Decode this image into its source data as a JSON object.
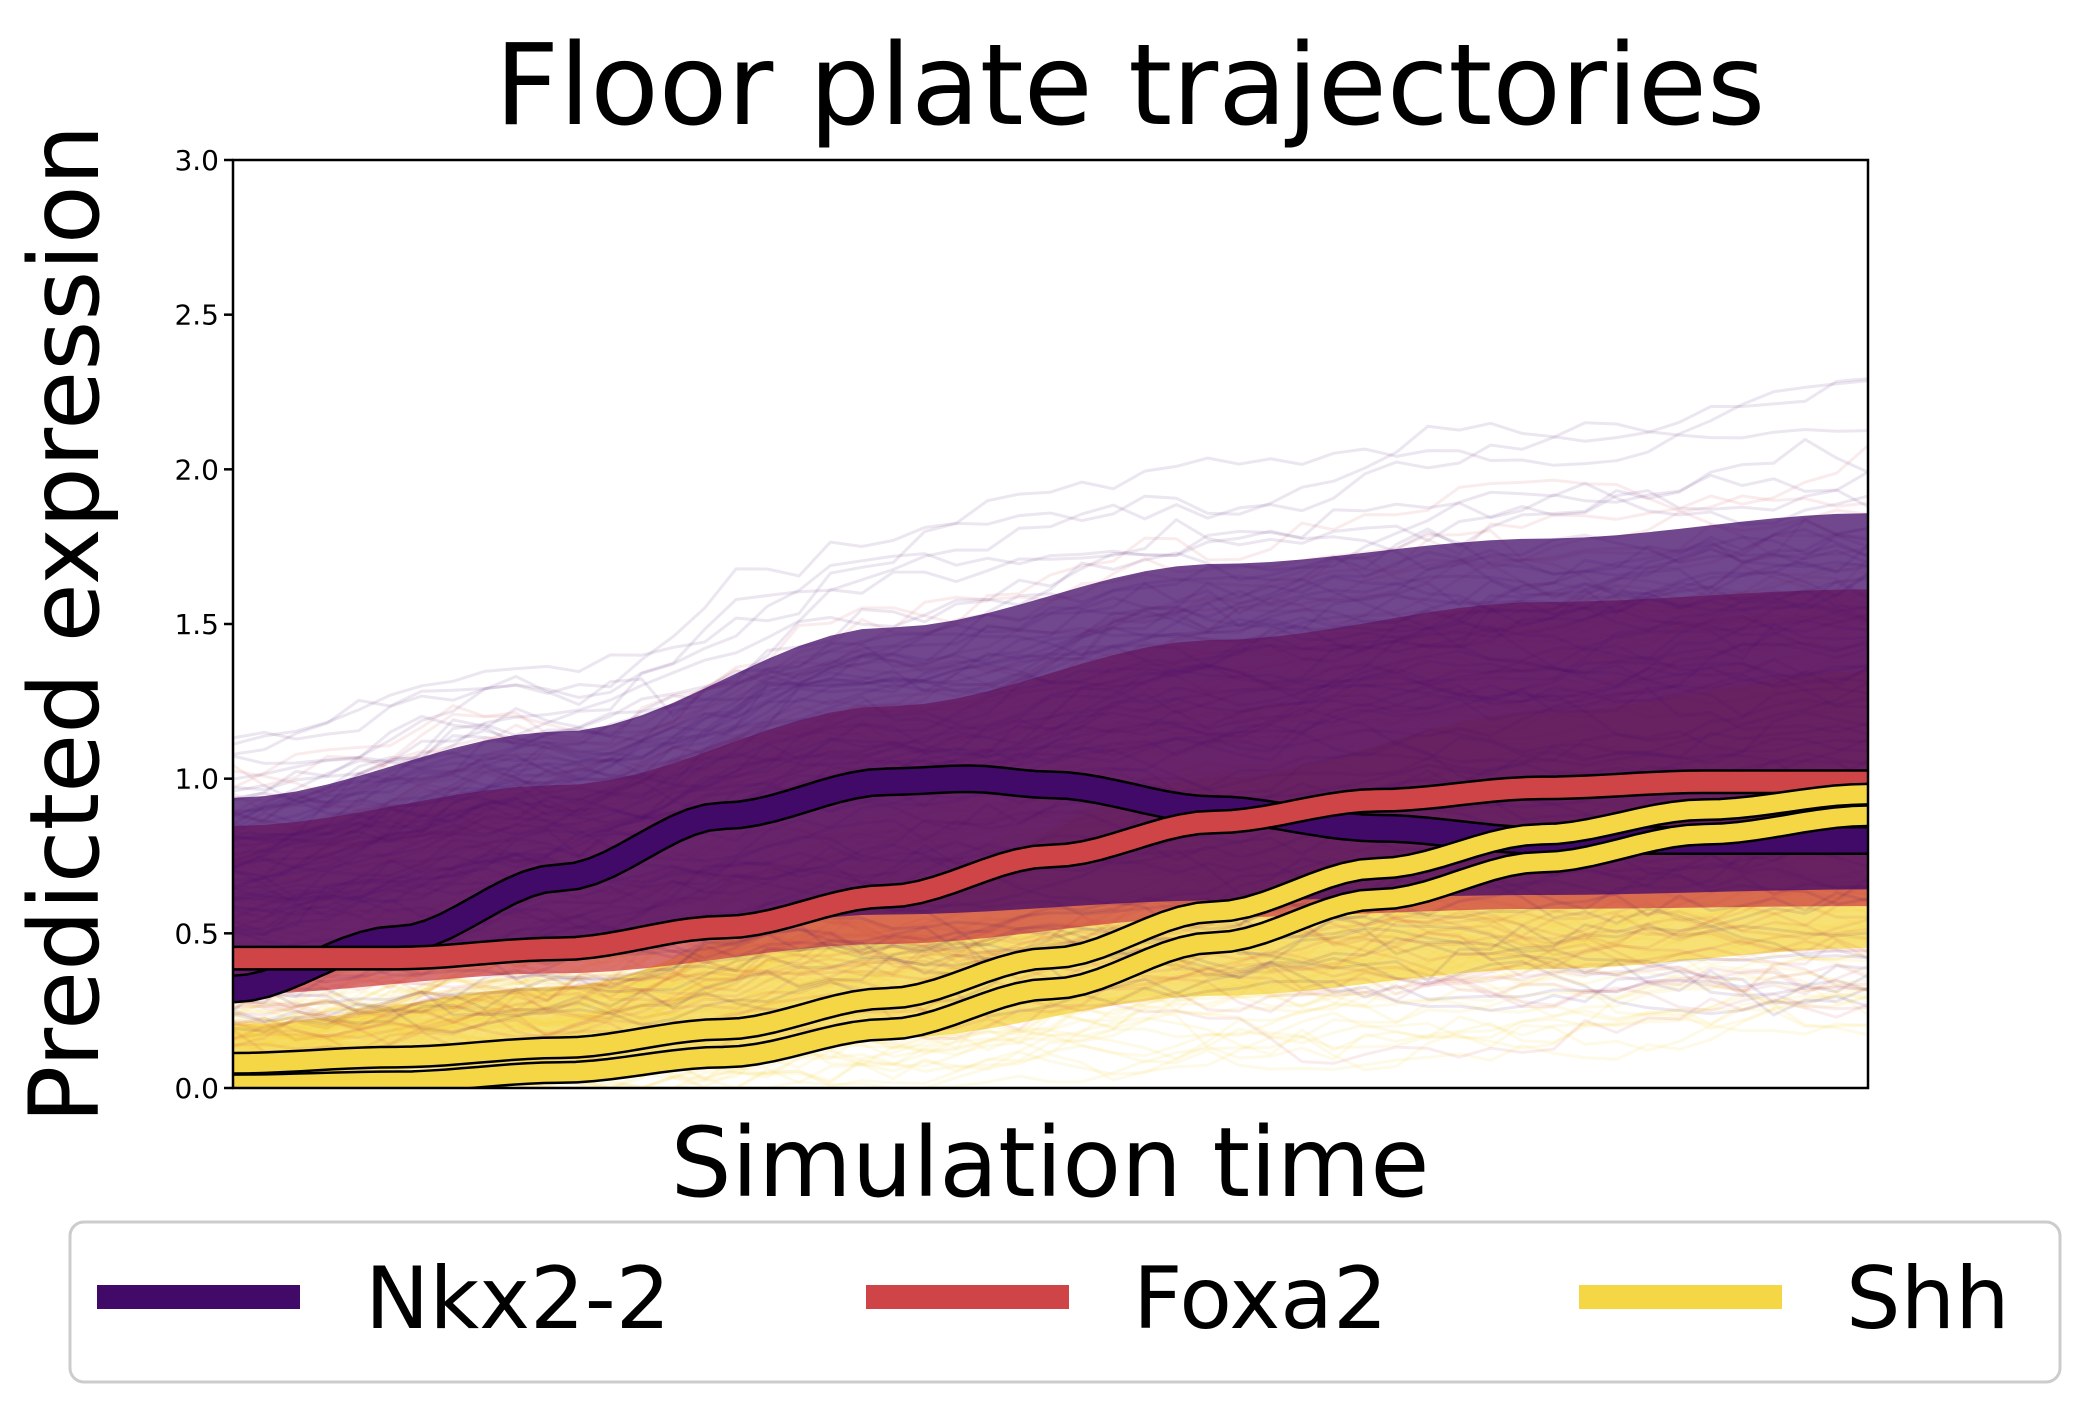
{
  "chart_data": {
    "type": "line",
    "title": "Floor plate trajectories",
    "xlabel": "Simulation time",
    "ylabel": "Predicted expression",
    "xlim": [
      0,
      1
    ],
    "ylim": [
      0,
      3
    ],
    "x_ticks_shown": false,
    "y_ticks": [
      {
        "value": 0.0,
        "label": "0.0"
      },
      {
        "value": 0.5,
        "label": "0.5"
      },
      {
        "value": 1.0,
        "label": "1.0"
      },
      {
        "value": 1.5,
        "label": "1.5"
      },
      {
        "value": 2.0,
        "label": "2.0"
      },
      {
        "value": 2.5,
        "label": "2.5"
      },
      {
        "value": 3.0,
        "label": "3.0"
      }
    ],
    "grid": false,
    "legend": {
      "placement": "bottom-outside",
      "columns": 3
    },
    "series": [
      {
        "name": "Nkx2-2",
        "color": "#420a68",
        "mean_curves": [
          {
            "x": [
              0,
              0.1,
              0.2,
              0.3,
              0.4,
              0.45,
              0.5,
              0.6,
              0.7,
              0.8,
              0.9,
              1.0
            ],
            "y": [
              0.32,
              0.48,
              0.68,
              0.88,
              0.99,
              1.0,
              0.98,
              0.9,
              0.84,
              0.8,
              0.8,
              0.8
            ]
          }
        ],
        "trajectory_spread": {
          "x": [
            0,
            0.2,
            0.4,
            0.6,
            0.8,
            1.0
          ],
          "upper": [
            1.1,
            1.35,
            1.75,
            2.0,
            2.1,
            2.2
          ],
          "lower": [
            0.2,
            0.25,
            0.3,
            0.3,
            0.3,
            0.3
          ]
        }
      },
      {
        "name": "Foxa2",
        "color": "#cf4446",
        "mean_curves": [
          {
            "x": [
              0,
              0.1,
              0.2,
              0.3,
              0.4,
              0.5,
              0.6,
              0.7,
              0.8,
              0.9,
              1.0
            ],
            "y": [
              0.42,
              0.42,
              0.45,
              0.52,
              0.62,
              0.75,
              0.86,
              0.93,
              0.97,
              0.99,
              0.99
            ]
          }
        ],
        "trajectory_spread": {
          "x": [
            0,
            0.2,
            0.4,
            0.6,
            0.8,
            1.0
          ],
          "upper": [
            1.0,
            1.15,
            1.45,
            1.7,
            1.85,
            1.9
          ],
          "lower": [
            0.15,
            0.2,
            0.25,
            0.3,
            0.3,
            0.3
          ]
        }
      },
      {
        "name": "Shh",
        "color": "#f5d745",
        "mean_curves": [
          {
            "x": [
              0,
              0.1,
              0.2,
              0.3,
              0.4,
              0.5,
              0.6,
              0.7,
              0.8,
              0.9,
              1.0
            ],
            "y": [
              0.08,
              0.1,
              0.13,
              0.19,
              0.29,
              0.42,
              0.57,
              0.71,
              0.82,
              0.9,
              0.95
            ]
          },
          {
            "x": [
              0,
              0.1,
              0.2,
              0.3,
              0.4,
              0.5,
              0.6,
              0.7,
              0.8,
              0.9,
              1.0
            ],
            "y": [
              0.01,
              0.02,
              0.05,
              0.1,
              0.19,
              0.32,
              0.47,
              0.61,
              0.73,
              0.82,
              0.88
            ]
          }
        ],
        "trajectory_spread": {
          "x": [
            0,
            0.2,
            0.4,
            0.6,
            0.8,
            1.0
          ],
          "upper": [
            0.25,
            0.4,
            0.8,
            1.2,
            1.45,
            1.6
          ],
          "lower": [
            0.0,
            0.0,
            0.02,
            0.1,
            0.15,
            0.2
          ]
        }
      }
    ]
  }
}
